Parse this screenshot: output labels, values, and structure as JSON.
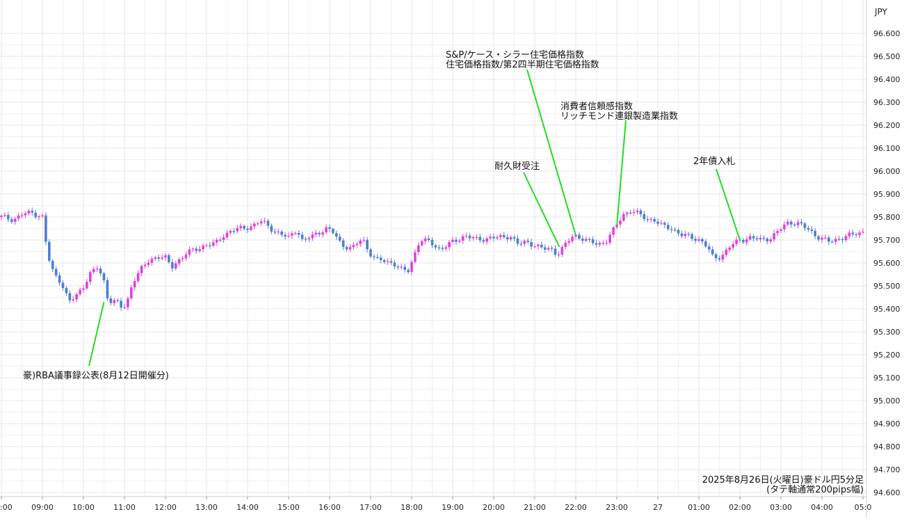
{
  "chart_data": {
    "type": "candlestick",
    "title": "2025年8月26日(火曜日)豪ドル円5分足",
    "subtitle": "(タテ軸通常200pips幅)",
    "y_unit_label": "JPY",
    "ylim": [
      94.6,
      96.7
    ],
    "y_ticks": [
      "94.600",
      "94.700",
      "94.800",
      "94.900",
      "95.000",
      "95.100",
      "95.200",
      "95.300",
      "95.400",
      "95.500",
      "95.600",
      "95.700",
      "95.800",
      "95.900",
      "96.000",
      "96.100",
      "96.200",
      "96.300",
      "96.400",
      "96.500",
      "96.600"
    ],
    "x_ticks": [
      ":00",
      "09:00",
      "10:00",
      "11:00",
      "12:00",
      "13:00",
      "14:00",
      "15:00",
      "16:00",
      "17:00",
      "18:00",
      "19:00",
      "20:00",
      "21:00",
      "22:00",
      "23:00",
      "27",
      "01:00",
      "02:00",
      "03:00",
      "04:00",
      "05:0"
    ],
    "x_tick_hours": [
      8,
      9,
      10,
      11,
      12,
      13,
      14,
      15,
      16,
      17,
      18,
      19,
      20,
      21,
      22,
      23,
      24,
      25,
      26,
      27,
      28,
      29
    ],
    "x_range_hours": [
      8.0,
      29.05
    ],
    "colors": {
      "up": "#e040e0",
      "down": "#4a7fd4",
      "grid": "#e6e6e6",
      "leader": "#22dd22"
    },
    "close_path": [
      [
        8.0,
        95.8
      ],
      [
        8.3,
        95.79
      ],
      [
        8.5,
        95.81
      ],
      [
        8.75,
        95.82
      ],
      [
        9.0,
        95.8
      ],
      [
        9.1,
        95.67
      ],
      [
        9.2,
        95.58
      ],
      [
        9.3,
        95.55
      ],
      [
        9.45,
        95.52
      ],
      [
        9.65,
        95.43
      ],
      [
        9.8,
        95.45
      ],
      [
        10.0,
        95.5
      ],
      [
        10.15,
        95.55
      ],
      [
        10.35,
        95.58
      ],
      [
        10.5,
        95.52
      ],
      [
        10.6,
        95.44
      ],
      [
        10.8,
        95.43
      ],
      [
        10.95,
        95.4
      ],
      [
        11.05,
        95.42
      ],
      [
        11.2,
        95.52
      ],
      [
        11.4,
        95.57
      ],
      [
        11.6,
        95.61
      ],
      [
        11.8,
        95.63
      ],
      [
        12.0,
        95.62
      ],
      [
        12.15,
        95.58
      ],
      [
        12.3,
        95.61
      ],
      [
        12.5,
        95.64
      ],
      [
        12.75,
        95.66
      ],
      [
        13.0,
        95.68
      ],
      [
        13.2,
        95.68
      ],
      [
        13.4,
        95.72
      ],
      [
        13.6,
        95.74
      ],
      [
        13.85,
        95.75
      ],
      [
        14.1,
        95.76
      ],
      [
        14.3,
        95.78
      ],
      [
        14.45,
        95.77
      ],
      [
        14.65,
        95.74
      ],
      [
        14.85,
        95.72
      ],
      [
        15.0,
        95.71
      ],
      [
        15.2,
        95.75
      ],
      [
        15.35,
        95.69
      ],
      [
        15.5,
        95.71
      ],
      [
        15.7,
        95.73
      ],
      [
        15.9,
        95.75
      ],
      [
        16.1,
        95.73
      ],
      [
        16.3,
        95.68
      ],
      [
        16.55,
        95.66
      ],
      [
        16.8,
        95.71
      ],
      [
        16.95,
        95.65
      ],
      [
        17.15,
        95.61
      ],
      [
        17.35,
        95.61
      ],
      [
        17.55,
        95.6
      ],
      [
        17.75,
        95.57
      ],
      [
        17.9,
        95.56
      ],
      [
        18.05,
        95.63
      ],
      [
        18.2,
        95.7
      ],
      [
        18.45,
        95.69
      ],
      [
        18.7,
        95.66
      ],
      [
        19.0,
        95.69
      ],
      [
        19.3,
        95.72
      ],
      [
        19.6,
        95.7
      ],
      [
        19.9,
        95.71
      ],
      [
        20.2,
        95.71
      ],
      [
        20.4,
        95.72
      ],
      [
        20.6,
        95.68
      ],
      [
        20.8,
        95.69
      ],
      [
        21.0,
        95.68
      ],
      [
        21.2,
        95.66
      ],
      [
        21.4,
        95.66
      ],
      [
        21.55,
        95.64
      ],
      [
        21.75,
        95.68
      ],
      [
        21.95,
        95.72
      ],
      [
        22.15,
        95.71
      ],
      [
        22.35,
        95.69
      ],
      [
        22.55,
        95.68
      ],
      [
        22.75,
        95.7
      ],
      [
        22.95,
        95.75
      ],
      [
        23.15,
        95.81
      ],
      [
        23.35,
        95.83
      ],
      [
        23.55,
        95.81
      ],
      [
        23.75,
        95.79
      ],
      [
        23.9,
        95.79
      ],
      [
        24.1,
        95.76
      ],
      [
        24.35,
        95.75
      ],
      [
        24.6,
        95.72
      ],
      [
        24.85,
        95.71
      ],
      [
        25.05,
        95.7
      ],
      [
        25.2,
        95.67
      ],
      [
        25.35,
        95.62
      ],
      [
        25.55,
        95.63
      ],
      [
        25.75,
        95.67
      ],
      [
        26.0,
        95.7
      ],
      [
        26.25,
        95.71
      ],
      [
        26.5,
        95.7
      ],
      [
        26.75,
        95.71
      ],
      [
        26.95,
        95.74
      ],
      [
        27.2,
        95.78
      ],
      [
        27.45,
        95.77
      ],
      [
        27.7,
        95.74
      ],
      [
        27.95,
        95.71
      ],
      [
        28.2,
        95.69
      ],
      [
        28.45,
        95.71
      ],
      [
        28.7,
        95.72
      ],
      [
        28.9,
        95.73
      ],
      [
        29.05,
        95.74
      ]
    ],
    "annotations": [
      {
        "lines": [
          "豪)RBA議事録公表(8月12日開催分)"
        ],
        "hour": 10.5,
        "price": 95.43
      },
      {
        "lines": [
          "S&P/ケース・シラー住宅価格指数",
          "住宅価格指数/第2四半期住宅価格指数"
        ],
        "hour": 22.0,
        "price": 95.72
      },
      {
        "lines": [
          "消費者信頼感指数",
          "リッチモンド連銀製造業指数"
        ],
        "hour": 23.0,
        "price": 95.76
      },
      {
        "lines": [
          "耐久財受注"
        ],
        "hour": 21.6,
        "price": 95.67
      },
      {
        "lines": [
          "2年債入札"
        ],
        "hour": 26.0,
        "price": 95.7
      }
    ]
  }
}
